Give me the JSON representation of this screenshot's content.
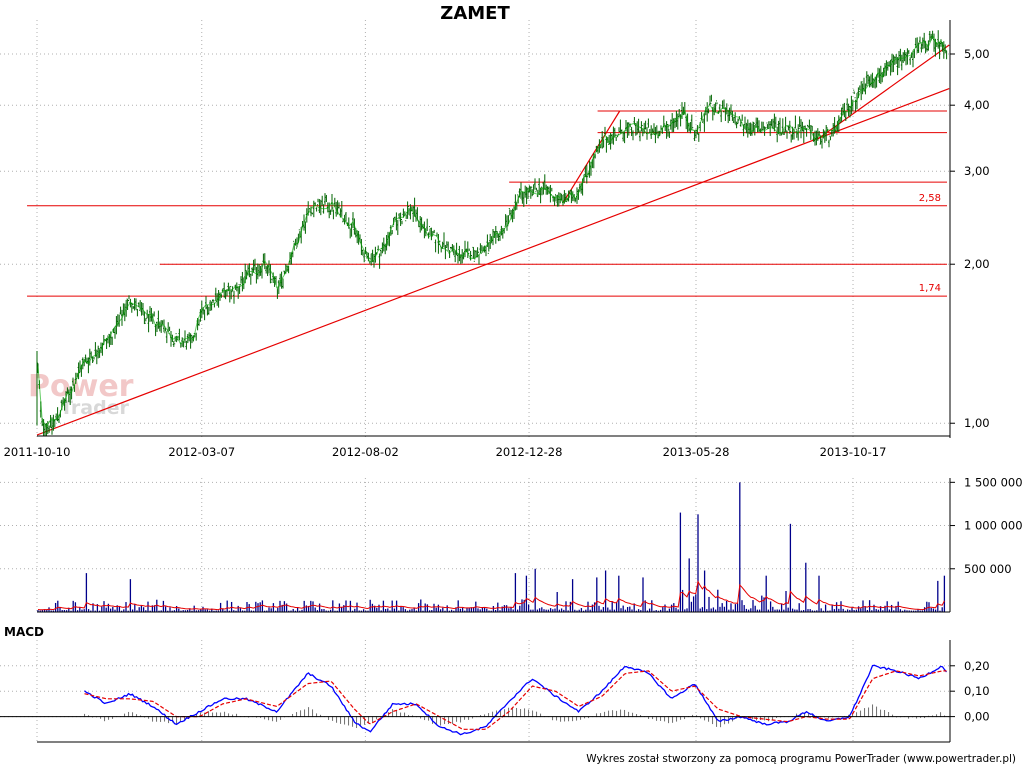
{
  "chart_data": [
    {
      "type": "candlestick",
      "title": "ZAMET",
      "yscale": "log",
      "ylim": [
        0.95,
        5.6
      ],
      "y_ticks": [
        "1,00",
        "2,00",
        "3,00",
        "4,00",
        "5,00"
      ],
      "y_tick_values": [
        1.0,
        2.0,
        3.0,
        4.0,
        5.0
      ],
      "x_ticks": [
        "2011-10-10",
        "2012-03-07",
        "2012-08-02",
        "2012-12-28",
        "2013-05-28",
        "2013-10-17"
      ],
      "x_range": [
        "2011-10-10",
        "2014-01-10"
      ],
      "colors": {
        "candle": "#006400",
        "close_line": "#00aa00",
        "levels": "#e60000"
      },
      "close_points": [
        [
          "2011-10-10",
          1.35
        ],
        [
          "2011-10-14",
          1.0
        ],
        [
          "2011-10-24",
          0.99
        ],
        [
          "2011-11-07",
          1.12
        ],
        [
          "2011-11-21",
          1.3
        ],
        [
          "2011-12-05",
          1.38
        ],
        [
          "2011-12-19",
          1.48
        ],
        [
          "2012-01-02",
          1.72
        ],
        [
          "2012-01-16",
          1.58
        ],
        [
          "2012-01-30",
          1.55
        ],
        [
          "2012-02-13",
          1.43
        ],
        [
          "2012-02-27",
          1.42
        ],
        [
          "2012-03-07",
          1.62
        ],
        [
          "2012-03-21",
          1.74
        ],
        [
          "2012-04-04",
          1.77
        ],
        [
          "2012-04-18",
          1.9
        ],
        [
          "2012-05-02",
          2.0
        ],
        [
          "2012-05-16",
          1.8
        ],
        [
          "2012-05-30",
          2.15
        ],
        [
          "2012-06-13",
          2.55
        ],
        [
          "2012-06-27",
          2.6
        ],
        [
          "2012-07-11",
          2.52
        ],
        [
          "2012-07-25",
          2.3
        ],
        [
          "2012-08-02",
          2.05
        ],
        [
          "2012-08-16",
          2.1
        ],
        [
          "2012-08-30",
          2.4
        ],
        [
          "2012-09-13",
          2.55
        ],
        [
          "2012-09-27",
          2.3
        ],
        [
          "2012-10-11",
          2.18
        ],
        [
          "2012-10-25",
          2.08
        ],
        [
          "2012-11-08",
          2.1
        ],
        [
          "2012-11-22",
          2.15
        ],
        [
          "2012-12-06",
          2.35
        ],
        [
          "2012-12-20",
          2.7
        ],
        [
          "2012-12-28",
          2.72
        ],
        [
          "2013-01-10",
          2.8
        ],
        [
          "2013-01-24",
          2.65
        ],
        [
          "2013-02-07",
          2.68
        ],
        [
          "2013-02-21",
          3.05
        ],
        [
          "2013-03-07",
          3.45
        ],
        [
          "2013-03-21",
          3.55
        ],
        [
          "2013-04-04",
          3.62
        ],
        [
          "2013-04-18",
          3.55
        ],
        [
          "2013-05-02",
          3.6
        ],
        [
          "2013-05-16",
          3.9
        ],
        [
          "2013-05-28",
          3.5
        ],
        [
          "2013-06-10",
          4.0
        ],
        [
          "2013-06-24",
          3.85
        ],
        [
          "2013-07-08",
          3.7
        ],
        [
          "2013-07-22",
          3.6
        ],
        [
          "2013-08-05",
          3.65
        ],
        [
          "2013-08-19",
          3.6
        ],
        [
          "2013-09-02",
          3.62
        ],
        [
          "2013-09-16",
          3.45
        ],
        [
          "2013-09-30",
          3.55
        ],
        [
          "2013-10-17",
          4.1
        ],
        [
          "2013-10-31",
          4.45
        ],
        [
          "2013-11-14",
          4.6
        ],
        [
          "2013-11-28",
          4.9
        ],
        [
          "2013-12-12",
          5.05
        ],
        [
          "2013-12-26",
          5.3
        ],
        [
          "2014-01-10",
          5.15
        ]
      ],
      "horizontal_levels": [
        {
          "value": 2.58,
          "label": "2,58",
          "from": "2011-10-01"
        },
        {
          "value": 1.74,
          "label": "1,74",
          "from": "2011-10-01"
        },
        {
          "value": 2.0,
          "label": "",
          "from": "2012-01-29"
        },
        {
          "value": 2.86,
          "label": "",
          "from": "2012-12-10"
        },
        {
          "value": 3.9,
          "label": "",
          "from": "2013-02-28"
        },
        {
          "value": 3.55,
          "label": "",
          "from": "2013-02-28"
        }
      ],
      "trendlines": [
        {
          "from": [
            "2011-10-10",
            0.95
          ],
          "to": [
            "2014-01-12",
            4.3
          ]
        },
        {
          "from": [
            "2013-01-28",
            2.62
          ],
          "to": [
            "2013-03-20",
            3.9
          ]
        },
        {
          "from": [
            "2013-09-15",
            3.45
          ],
          "to": [
            "2014-01-12",
            5.2
          ]
        }
      ]
    },
    {
      "type": "bar",
      "title": "",
      "y_ticks": [
        "500 000",
        "1 000 000",
        "1 500 000"
      ],
      "y_tick_values": [
        500000,
        1000000,
        1500000
      ],
      "ylim": [
        0,
        1550000
      ],
      "colors": {
        "bars": "#00008b",
        "average": "#e60000"
      },
      "spikes": [
        [
          "2011-11-24",
          450000
        ],
        [
          "2012-01-03",
          380000
        ],
        [
          "2012-12-15",
          450000
        ],
        [
          "2012-12-26",
          420000
        ],
        [
          "2013-01-03",
          500000
        ],
        [
          "2013-02-06",
          380000
        ],
        [
          "2013-02-28",
          400000
        ],
        [
          "2013-03-08",
          480000
        ],
        [
          "2013-03-20",
          420000
        ],
        [
          "2013-04-10",
          400000
        ],
        [
          "2013-05-14",
          1150000
        ],
        [
          "2013-05-22",
          620000
        ],
        [
          "2013-05-30",
          1130000
        ],
        [
          "2013-06-04",
          480000
        ],
        [
          "2013-07-08",
          1500000
        ],
        [
          "2013-07-30",
          420000
        ],
        [
          "2013-08-21",
          1020000
        ],
        [
          "2013-09-05",
          570000
        ],
        [
          "2013-09-16",
          420000
        ],
        [
          "2014-01-02",
          360000
        ],
        [
          "2014-01-08",
          420000
        ]
      ]
    },
    {
      "type": "line",
      "title": "MACD",
      "y_ticks": [
        "0,00",
        "0,10",
        "0,20"
      ],
      "y_tick_values": [
        0.0,
        0.1,
        0.2
      ],
      "ylim": [
        -0.1,
        0.27
      ],
      "colors": {
        "macd": "#0000ff",
        "signal": "#e60000",
        "histogram": "#707070"
      },
      "macd": [
        [
          "2011-11-22",
          0.1
        ],
        [
          "2011-12-12",
          0.05
        ],
        [
          "2012-01-02",
          0.09
        ],
        [
          "2012-01-23",
          0.04
        ],
        [
          "2012-02-13",
          -0.03
        ],
        [
          "2012-03-05",
          0.02
        ],
        [
          "2012-03-26",
          0.07
        ],
        [
          "2012-04-16",
          0.07
        ],
        [
          "2012-05-14",
          0.02
        ],
        [
          "2012-06-11",
          0.17
        ],
        [
          "2012-07-02",
          0.12
        ],
        [
          "2012-07-23",
          -0.02
        ],
        [
          "2012-08-06",
          -0.06
        ],
        [
          "2012-08-27",
          0.05
        ],
        [
          "2012-09-17",
          0.05
        ],
        [
          "2012-10-08",
          -0.04
        ],
        [
          "2012-10-29",
          -0.07
        ],
        [
          "2012-11-19",
          -0.04
        ],
        [
          "2012-12-10",
          0.06
        ],
        [
          "2012-12-31",
          0.15
        ],
        [
          "2013-01-21",
          0.08
        ],
        [
          "2013-02-11",
          0.02
        ],
        [
          "2013-03-04",
          0.1
        ],
        [
          "2013-03-25",
          0.2
        ],
        [
          "2013-04-15",
          0.17
        ],
        [
          "2013-05-06",
          0.07
        ],
        [
          "2013-05-27",
          0.13
        ],
        [
          "2013-06-17",
          -0.02
        ],
        [
          "2013-07-08",
          0.0
        ],
        [
          "2013-07-29",
          -0.03
        ],
        [
          "2013-08-19",
          -0.02
        ],
        [
          "2013-09-05",
          0.02
        ],
        [
          "2013-09-23",
          -0.02
        ],
        [
          "2013-10-14",
          0.0
        ],
        [
          "2013-11-04",
          0.2
        ],
        [
          "2013-11-25",
          0.18
        ],
        [
          "2013-12-16",
          0.15
        ],
        [
          "2014-01-06",
          0.2
        ],
        [
          "2014-01-10",
          0.17
        ]
      ],
      "signal": [
        [
          "2011-11-22",
          0.09
        ],
        [
          "2011-12-12",
          0.07
        ],
        [
          "2012-01-02",
          0.07
        ],
        [
          "2012-01-23",
          0.06
        ],
        [
          "2012-02-13",
          0.0
        ],
        [
          "2012-03-05",
          0.0
        ],
        [
          "2012-03-26",
          0.05
        ],
        [
          "2012-04-16",
          0.07
        ],
        [
          "2012-05-14",
          0.04
        ],
        [
          "2012-06-11",
          0.13
        ],
        [
          "2012-07-02",
          0.14
        ],
        [
          "2012-07-23",
          0.03
        ],
        [
          "2012-08-06",
          -0.03
        ],
        [
          "2012-08-27",
          0.02
        ],
        [
          "2012-09-17",
          0.05
        ],
        [
          "2012-10-08",
          0.0
        ],
        [
          "2012-10-29",
          -0.05
        ],
        [
          "2012-11-19",
          -0.05
        ],
        [
          "2012-12-10",
          0.02
        ],
        [
          "2012-12-31",
          0.12
        ],
        [
          "2013-01-21",
          0.1
        ],
        [
          "2013-02-11",
          0.04
        ],
        [
          "2013-03-04",
          0.08
        ],
        [
          "2013-03-25",
          0.17
        ],
        [
          "2013-04-15",
          0.18
        ],
        [
          "2013-05-06",
          0.1
        ],
        [
          "2013-05-27",
          0.12
        ],
        [
          "2013-06-17",
          0.03
        ],
        [
          "2013-07-08",
          0.0
        ],
        [
          "2013-07-29",
          -0.01
        ],
        [
          "2013-08-19",
          -0.02
        ],
        [
          "2013-09-05",
          0.0
        ],
        [
          "2013-09-23",
          -0.01
        ],
        [
          "2013-10-14",
          -0.01
        ],
        [
          "2013-11-04",
          0.15
        ],
        [
          "2013-11-25",
          0.18
        ],
        [
          "2013-12-16",
          0.16
        ],
        [
          "2014-01-06",
          0.18
        ],
        [
          "2014-01-10",
          0.18
        ]
      ]
    }
  ],
  "watermark": {
    "line1": "Power",
    "line2": "Trader"
  },
  "footer": "Wykres został stworzony za pomocą programu PowerTrader (www.powertrader.pl)"
}
